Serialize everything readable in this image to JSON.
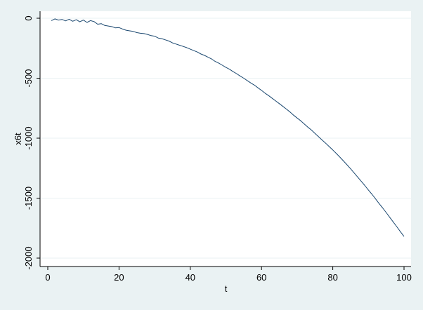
{
  "chart_data": {
    "type": "line",
    "xlabel": "t",
    "ylabel": "x6t",
    "xlim": [
      0,
      100
    ],
    "ylim": [
      -2000,
      0
    ],
    "xticks": [
      0,
      20,
      40,
      60,
      80,
      100
    ],
    "yticks": [
      0,
      -500,
      -1000,
      -1500,
      -2000
    ],
    "grid": true,
    "colors": {
      "line": "#1a476f",
      "plot_background": "#ffffff",
      "outer_background": "#eaf2f3",
      "grid": "#eaf2f3"
    },
    "series": [
      {
        "x": [
          1,
          2,
          3,
          4,
          5,
          6,
          7,
          8,
          9,
          10,
          11,
          12,
          13,
          14,
          15,
          16,
          17,
          18,
          19,
          20,
          21,
          22,
          23,
          24,
          25,
          26,
          27,
          28,
          29,
          30,
          31,
          32,
          33,
          34,
          35,
          36,
          37,
          38,
          39,
          40,
          41,
          42,
          43,
          44,
          45,
          46,
          47,
          48,
          49,
          50,
          51,
          52,
          53,
          54,
          55,
          56,
          57,
          58,
          59,
          60,
          61,
          62,
          63,
          64,
          65,
          66,
          67,
          68,
          69,
          70,
          71,
          72,
          73,
          74,
          75,
          76,
          77,
          78,
          79,
          80,
          81,
          82,
          83,
          84,
          85,
          86,
          87,
          88,
          89,
          90,
          91,
          92,
          93,
          94,
          95,
          96,
          97,
          98,
          99,
          100
        ],
        "values": [
          -20,
          -5,
          -15,
          -10,
          -22,
          -8,
          -25,
          -12,
          -30,
          -15,
          -35,
          -20,
          -28,
          -50,
          -45,
          -60,
          -65,
          -70,
          -80,
          -78,
          -90,
          -100,
          -105,
          -110,
          -120,
          -125,
          -128,
          -135,
          -145,
          -150,
          -165,
          -170,
          -180,
          -190,
          -205,
          -215,
          -225,
          -235,
          -245,
          -258,
          -270,
          -282,
          -298,
          -310,
          -325,
          -340,
          -360,
          -375,
          -392,
          -410,
          -425,
          -445,
          -462,
          -482,
          -500,
          -520,
          -540,
          -558,
          -580,
          -602,
          -625,
          -645,
          -668,
          -690,
          -712,
          -735,
          -758,
          -782,
          -808,
          -832,
          -855,
          -882,
          -908,
          -932,
          -960,
          -988,
          -1015,
          -1042,
          -1070,
          -1098,
          -1128,
          -1158,
          -1190,
          -1222,
          -1255,
          -1290,
          -1325,
          -1360,
          -1395,
          -1432,
          -1468,
          -1505,
          -1545,
          -1582,
          -1620,
          -1660,
          -1700,
          -1740,
          -1780,
          -1820
        ]
      }
    ]
  }
}
